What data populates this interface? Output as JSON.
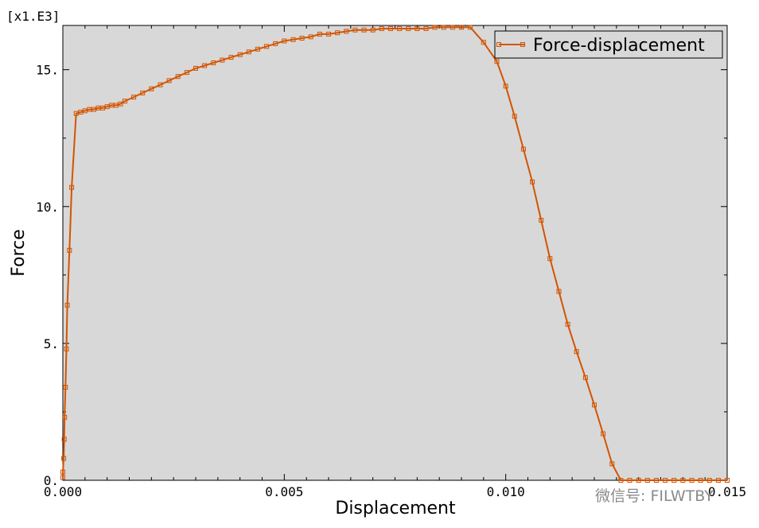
{
  "chart_data": {
    "type": "line",
    "title": "",
    "xlabel": "Displacement",
    "ylabel": "Force",
    "y_multiplier_label": "[x1.E3]",
    "xlim": [
      0.0,
      0.015
    ],
    "ylim": [
      0.0,
      16.5
    ],
    "x_ticks": [
      {
        "value": 0.0,
        "label": "0.000"
      },
      {
        "value": 0.005,
        "label": "0.005"
      },
      {
        "value": 0.01,
        "label": "0.010"
      },
      {
        "value": 0.015,
        "label": "0.015"
      }
    ],
    "y_ticks": [
      {
        "value": 0,
        "label": "0."
      },
      {
        "value": 5,
        "label": "5."
      },
      {
        "value": 10,
        "label": "10."
      },
      {
        "value": 15,
        "label": "15."
      }
    ],
    "grid": false,
    "legend": {
      "position": "top-right",
      "entries": [
        "Force-displacement"
      ]
    },
    "series": [
      {
        "name": "Force-displacement",
        "color": "#d35400",
        "marker": "square",
        "points": [
          [
            0.0,
            0.1
          ],
          [
            0.0,
            0.3
          ],
          [
            2e-05,
            0.8
          ],
          [
            3e-05,
            1.5
          ],
          [
            4e-05,
            2.3
          ],
          [
            6e-05,
            3.4
          ],
          [
            8e-05,
            4.8
          ],
          [
            0.0001,
            6.4
          ],
          [
            0.00015,
            8.4
          ],
          [
            0.0002,
            10.7
          ],
          [
            0.0003,
            13.4
          ],
          [
            0.0004,
            13.45
          ],
          [
            0.0005,
            13.5
          ],
          [
            0.0006,
            13.55
          ],
          [
            0.0007,
            13.55
          ],
          [
            0.0008,
            13.6
          ],
          [
            0.0009,
            13.6
          ],
          [
            0.001,
            13.65
          ],
          [
            0.0011,
            13.7
          ],
          [
            0.0012,
            13.7
          ],
          [
            0.0013,
            13.75
          ],
          [
            0.0014,
            13.85
          ],
          [
            0.0016,
            14.0
          ],
          [
            0.0018,
            14.15
          ],
          [
            0.002,
            14.3
          ],
          [
            0.0022,
            14.45
          ],
          [
            0.0024,
            14.6
          ],
          [
            0.0026,
            14.75
          ],
          [
            0.0028,
            14.9
          ],
          [
            0.003,
            15.05
          ],
          [
            0.0032,
            15.15
          ],
          [
            0.0034,
            15.25
          ],
          [
            0.0036,
            15.35
          ],
          [
            0.0038,
            15.45
          ],
          [
            0.004,
            15.55
          ],
          [
            0.0042,
            15.65
          ],
          [
            0.0044,
            15.75
          ],
          [
            0.0046,
            15.85
          ],
          [
            0.0048,
            15.95
          ],
          [
            0.005,
            16.05
          ],
          [
            0.0052,
            16.1
          ],
          [
            0.0054,
            16.15
          ],
          [
            0.0056,
            16.2
          ],
          [
            0.0058,
            16.3
          ],
          [
            0.006,
            16.3
          ],
          [
            0.0062,
            16.35
          ],
          [
            0.0064,
            16.4
          ],
          [
            0.0066,
            16.45
          ],
          [
            0.0068,
            16.45
          ],
          [
            0.007,
            16.45
          ],
          [
            0.0072,
            16.5
          ],
          [
            0.0074,
            16.5
          ],
          [
            0.0076,
            16.5
          ],
          [
            0.0078,
            16.5
          ],
          [
            0.008,
            16.5
          ],
          [
            0.0082,
            16.5
          ],
          [
            0.0084,
            16.55
          ],
          [
            0.0086,
            16.55
          ],
          [
            0.0088,
            16.55
          ],
          [
            0.009,
            16.55
          ],
          [
            0.0092,
            16.55
          ],
          [
            0.0095,
            16.0
          ],
          [
            0.0098,
            15.3
          ],
          [
            0.01,
            14.4
          ],
          [
            0.0102,
            13.3
          ],
          [
            0.0104,
            12.1
          ],
          [
            0.0106,
            10.9
          ],
          [
            0.0108,
            9.5
          ],
          [
            0.011,
            8.1
          ],
          [
            0.0112,
            6.9
          ],
          [
            0.0114,
            5.7
          ],
          [
            0.0116,
            4.7
          ],
          [
            0.0118,
            3.75
          ],
          [
            0.012,
            2.75
          ],
          [
            0.0122,
            1.7
          ],
          [
            0.0124,
            0.6
          ],
          [
            0.0126,
            0.0
          ],
          [
            0.0128,
            0.0
          ],
          [
            0.013,
            0.0
          ],
          [
            0.0132,
            0.0
          ],
          [
            0.0134,
            0.0
          ],
          [
            0.0136,
            0.0
          ],
          [
            0.0138,
            0.0
          ],
          [
            0.014,
            0.0
          ],
          [
            0.0142,
            0.0
          ],
          [
            0.0144,
            0.0
          ],
          [
            0.0146,
            0.0
          ],
          [
            0.0148,
            0.0
          ],
          [
            0.015,
            0.0
          ]
        ]
      }
    ]
  },
  "watermark": {
    "text": "微信号: FILWTBY"
  }
}
